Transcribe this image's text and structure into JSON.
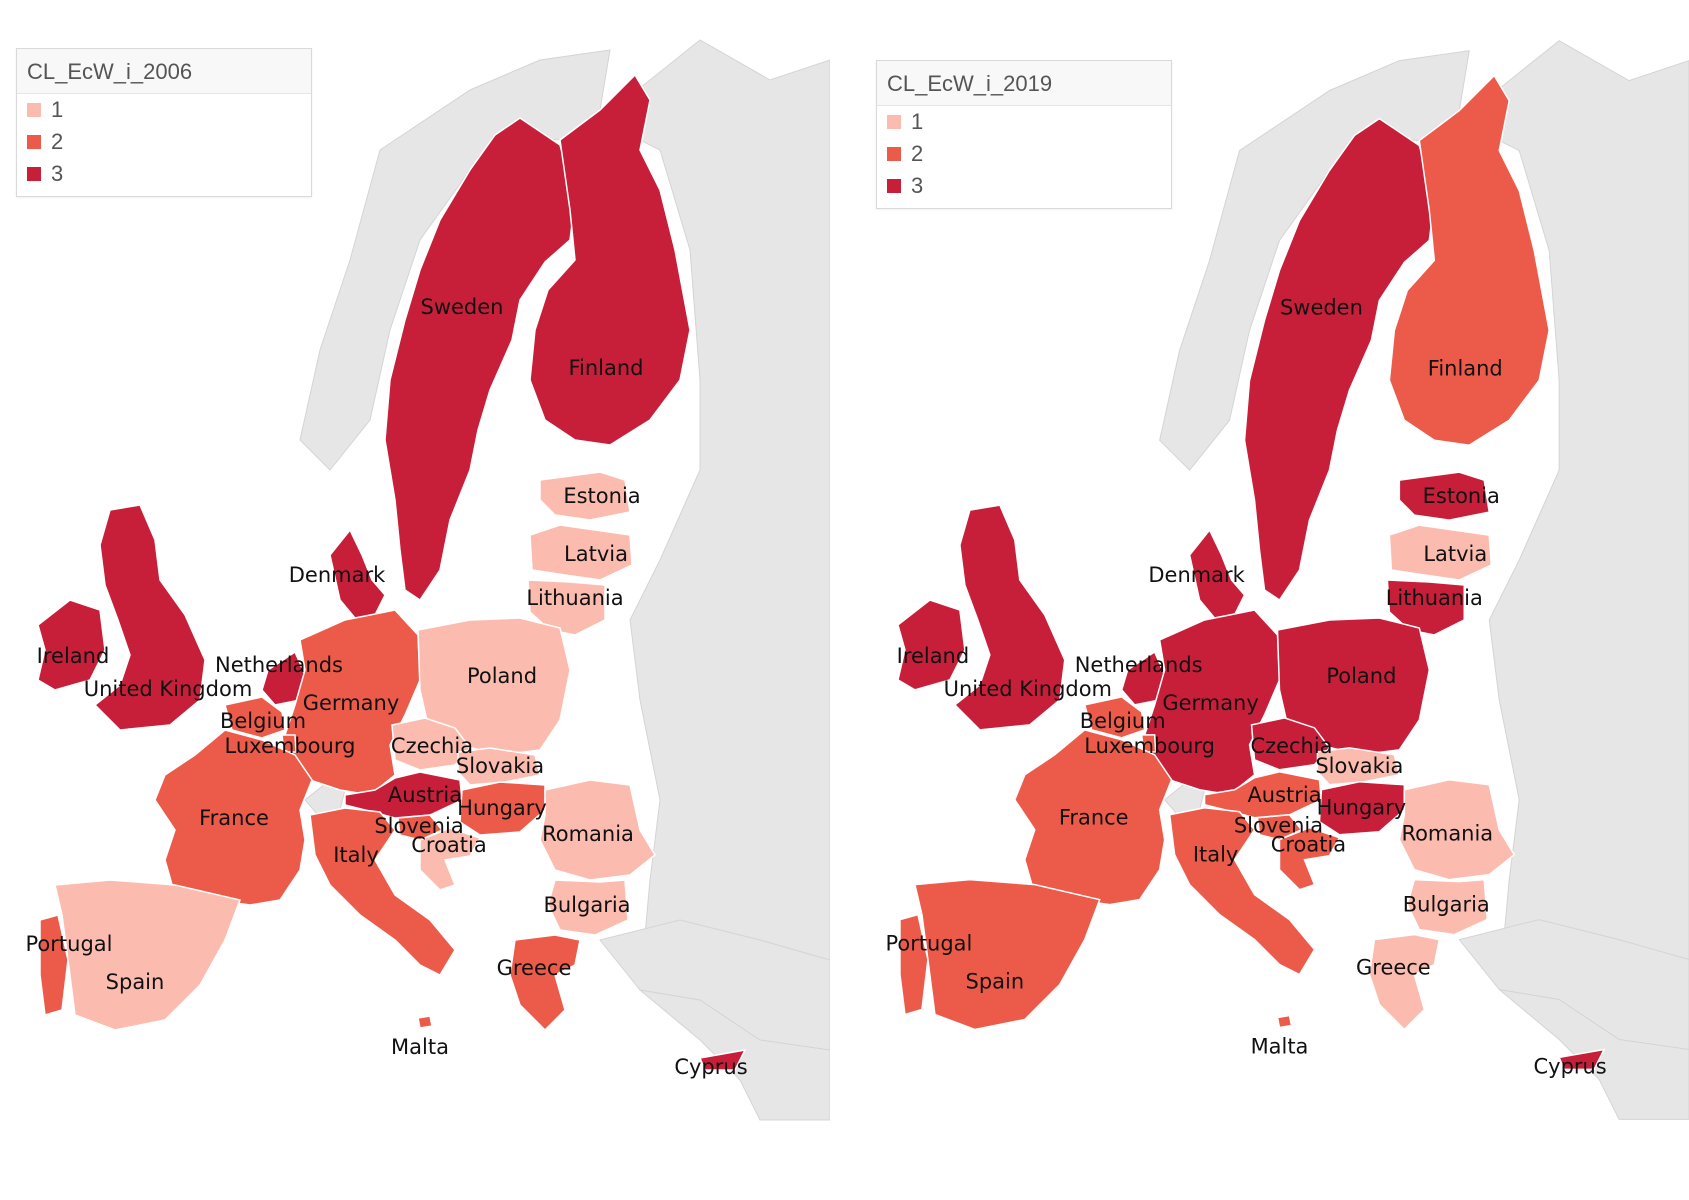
{
  "colors": {
    "level1": "#fbbcaf",
    "level2": "#ec5a4a",
    "level3": "#c71f3a",
    "land": "#e6e6e6",
    "border": "#ffffff",
    "sea": "#ffffff"
  },
  "maps": [
    {
      "legend": {
        "title": "CL_EcW_i_2006",
        "items": [
          {
            "label": "1",
            "color": "#fbbcaf"
          },
          {
            "label": "2",
            "color": "#ec5a4a"
          },
          {
            "label": "3",
            "color": "#c71f3a"
          }
        ]
      },
      "countries": {
        "Sweden": 3,
        "Finland": 3,
        "Estonia": 1,
        "Latvia": 1,
        "Lithuania": 1,
        "Denmark": 3,
        "Ireland": 3,
        "United Kingdom": 3,
        "Netherlands": 3,
        "Germany": 2,
        "Poland": 1,
        "Belgium": 2,
        "Luxembourg": 2,
        "Czechia": 1,
        "Slovakia": 1,
        "Austria": 3,
        "Hungary": 2,
        "Slovenia": 2,
        "Croatia": 1,
        "France": 2,
        "Italy": 2,
        "Romania": 1,
        "Bulgaria": 1,
        "Portugal": 2,
        "Spain": 1,
        "Greece": 2,
        "Malta": 2,
        "Cyprus": 3
      }
    },
    {
      "legend": {
        "title": "CL_EcW_i_2019",
        "items": [
          {
            "label": "1",
            "color": "#fbbcaf"
          },
          {
            "label": "2",
            "color": "#ec5a4a"
          },
          {
            "label": "3",
            "color": "#c71f3a"
          }
        ]
      },
      "countries": {
        "Sweden": 3,
        "Finland": 2,
        "Estonia": 3,
        "Latvia": 1,
        "Lithuania": 3,
        "Denmark": 3,
        "Ireland": 3,
        "United Kingdom": 3,
        "Netherlands": 3,
        "Germany": 3,
        "Poland": 3,
        "Belgium": 2,
        "Luxembourg": 2,
        "Czechia": 3,
        "Slovakia": 1,
        "Austria": 2,
        "Hungary": 3,
        "Slovenia": 2,
        "Croatia": 2,
        "France": 2,
        "Italy": 2,
        "Romania": 1,
        "Bulgaria": 1,
        "Portugal": 2,
        "Spain": 2,
        "Greece": 1,
        "Malta": 2,
        "Cyprus": 3
      }
    }
  ]
}
